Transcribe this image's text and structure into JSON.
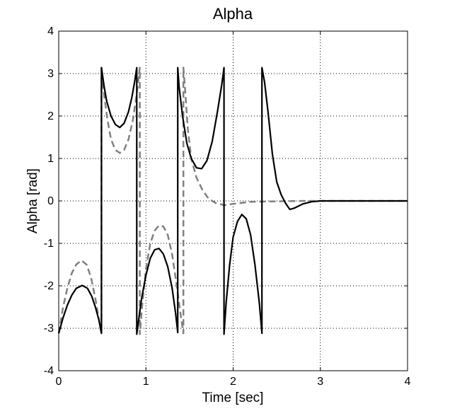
{
  "chart_data": {
    "type": "line",
    "title": "Alpha",
    "xlabel": "Time [sec]",
    "ylabel": "Alpha [rad]",
    "xlim": [
      0,
      4
    ],
    "ylim": [
      -4,
      4
    ],
    "xticks": [
      0,
      1,
      2,
      3,
      4
    ],
    "yticks": [
      -4,
      -3,
      -2,
      -1,
      0,
      1,
      2,
      3,
      4
    ],
    "xtick_labels": [
      "0",
      "1",
      "2",
      "3",
      "4"
    ],
    "ytick_labels": [
      "-4",
      "-3",
      "-2",
      "-1",
      "0",
      "1",
      "2",
      "3",
      "4"
    ],
    "grid": true,
    "grid_style": "dotted",
    "series": [
      {
        "style": "solid",
        "color": "#000000",
        "x": [
          0,
          0.05,
          0.1,
          0.15,
          0.2,
          0.27,
          0.33,
          0.38,
          0.42,
          0.46,
          0.49,
          0.49,
          0.5,
          0.52,
          0.55,
          0.6,
          0.65,
          0.7,
          0.75,
          0.8,
          0.84,
          0.87,
          0.895,
          0.895,
          0.92,
          0.95,
          1.0,
          1.05,
          1.1,
          1.15,
          1.2,
          1.25,
          1.3,
          1.34,
          1.365,
          1.365,
          1.38,
          1.42,
          1.47,
          1.52,
          1.58,
          1.64,
          1.7,
          1.76,
          1.82,
          1.87,
          1.895,
          1.895,
          1.92,
          1.96,
          2.0,
          2.05,
          2.1,
          2.15,
          2.2,
          2.25,
          2.3,
          2.33,
          2.33,
          2.36,
          2.4,
          2.45,
          2.5,
          2.55,
          2.6,
          2.65,
          2.7,
          2.8,
          2.9,
          3.0,
          3.2,
          3.5,
          4.0
        ],
        "y": [
          -3.12,
          -2.75,
          -2.45,
          -2.22,
          -2.06,
          -1.99,
          -2.06,
          -2.25,
          -2.5,
          -2.8,
          -3.12,
          3.14,
          3.0,
          2.7,
          2.35,
          2.0,
          1.8,
          1.73,
          1.83,
          2.1,
          2.45,
          2.8,
          3.14,
          -3.14,
          -2.75,
          -2.3,
          -1.75,
          -1.35,
          -1.15,
          -1.12,
          -1.25,
          -1.55,
          -2.05,
          -2.65,
          -3.1,
          3.14,
          2.7,
          2.0,
          1.35,
          1.0,
          0.78,
          0.76,
          0.95,
          1.4,
          2.1,
          2.75,
          3.14,
          -3.14,
          -2.4,
          -1.5,
          -0.85,
          -0.48,
          -0.32,
          -0.42,
          -0.8,
          -1.5,
          -2.4,
          -3.12,
          3.14,
          2.8,
          2.1,
          1.1,
          0.45,
          0.15,
          -0.05,
          -0.2,
          -0.17,
          -0.07,
          -0.02,
          0.0,
          0.0,
          0.0,
          0.0
        ]
      },
      {
        "style": "dashed",
        "color": "#808080",
        "x": [
          0,
          0.05,
          0.1,
          0.15,
          0.2,
          0.26,
          0.32,
          0.37,
          0.42,
          0.47,
          0.49,
          0.49,
          0.52,
          0.56,
          0.6,
          0.65,
          0.7,
          0.75,
          0.8,
          0.85,
          0.9,
          0.93,
          0.93,
          0.96,
          1.0,
          1.05,
          1.1,
          1.15,
          1.2,
          1.25,
          1.3,
          1.35,
          1.4,
          1.43,
          1.43,
          1.45,
          1.48,
          1.52,
          1.58,
          1.65,
          1.72,
          1.8,
          1.9,
          2.0,
          2.2,
          2.5,
          2.8,
          3.0,
          3.5,
          4.0
        ],
        "y": [
          -3.12,
          -2.5,
          -2.05,
          -1.7,
          -1.5,
          -1.4,
          -1.5,
          -1.8,
          -2.3,
          -2.9,
          -3.12,
          3.14,
          2.5,
          1.9,
          1.45,
          1.2,
          1.13,
          1.2,
          1.45,
          1.9,
          2.6,
          3.14,
          -3.14,
          -2.4,
          -1.6,
          -1.0,
          -0.7,
          -0.58,
          -0.6,
          -0.8,
          -1.25,
          -1.95,
          -2.7,
          -3.12,
          3.14,
          2.6,
          1.7,
          1.0,
          0.55,
          0.25,
          0.05,
          -0.05,
          -0.1,
          -0.07,
          -0.02,
          -0.01,
          0.0,
          0.0,
          0.0,
          0.0
        ]
      }
    ]
  }
}
